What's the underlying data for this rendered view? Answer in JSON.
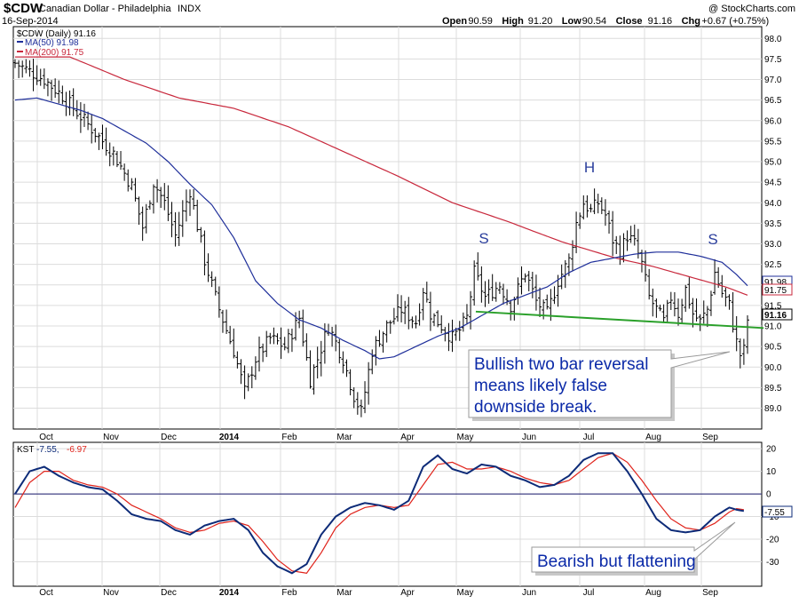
{
  "header": {
    "symbol": "$CDW",
    "name": "Canadian Dollar - Philadelphia",
    "exchange": "INDX",
    "date": "16-Sep-2014",
    "watermark": "@ StockCharts.com",
    "ohlc": [
      {
        "label": "Open",
        "value": "90.59"
      },
      {
        "label": "High",
        "value": "91.20"
      },
      {
        "label": "Low",
        "value": "90.54"
      },
      {
        "label": "Close",
        "value": "91.16"
      },
      {
        "label": "Chg",
        "value": "+0.67 (+0.75%)"
      }
    ]
  },
  "legend": {
    "price": "$CDW (Daily) 91.16",
    "ma50": "MA(50) 91.98",
    "ma200": "MA(200) 91.75",
    "kst_label": "KST",
    "kst_value": "-7.55,",
    "kst_signal": "-6.97"
  },
  "annotations": {
    "break_note": [
      "Bullish two bar reversal",
      "means likely false",
      "downside break."
    ],
    "kst_note": "Bearish but flattening",
    "left_shoulder": "S",
    "head": "H",
    "right_shoulder": "S"
  },
  "value_tags": {
    "ma50": "91.98",
    "ma200": "91.75",
    "close": "91.16",
    "kst": "-7.55"
  },
  "colors": {
    "price_bars": "#000000",
    "ma50": "#1f2f9a",
    "ma200": "#c8283c",
    "neckline": "#2aa02a",
    "kst": "#0d2b78",
    "kst_signal": "#e0231b",
    "annotation_text": "#0b2aa8",
    "shoulder_letters": "#2a3e9c"
  },
  "chart_data": [
    {
      "type": "ohlc-line",
      "ylim": [
        88.6,
        98.2
      ],
      "yticks": [
        "98.0",
        "97.5",
        "97.0",
        "96.5",
        "96.0",
        "95.5",
        "95.0",
        "94.5",
        "94.0",
        "93.5",
        "93.0",
        "92.5",
        "92.0",
        "91.5",
        "91.0",
        "90.5",
        "90.0",
        "89.5",
        "89.0"
      ],
      "x_months": [
        "Oct",
        "Nov",
        "Dec",
        "2014",
        "Feb",
        "Mar",
        "Apr",
        "May",
        "Jun",
        "Jul",
        "Aug",
        "Sep"
      ],
      "close_keypoints": [
        [
          0,
          97.4
        ],
        [
          8,
          97.0
        ],
        [
          13,
          96.6
        ],
        [
          17,
          96.2
        ],
        [
          22,
          95.7
        ],
        [
          27,
          95.2
        ],
        [
          32,
          94.4
        ],
        [
          35,
          93.4
        ],
        [
          38,
          94.5
        ],
        [
          41,
          94.0
        ],
        [
          44,
          93.2
        ],
        [
          48,
          94.3
        ],
        [
          52,
          92.6
        ],
        [
          56,
          91.4
        ],
        [
          60,
          90.4
        ],
        [
          63,
          89.4
        ],
        [
          66,
          90.2
        ],
        [
          70,
          90.7
        ],
        [
          74,
          90.5
        ],
        [
          78,
          91.2
        ],
        [
          81,
          89.7
        ],
        [
          83,
          90.2
        ],
        [
          86,
          91.0
        ],
        [
          90,
          90.2
        ],
        [
          93,
          89.3
        ],
        [
          95,
          88.9
        ],
        [
          98,
          90.4
        ],
        [
          102,
          91.0
        ],
        [
          106,
          91.4
        ],
        [
          110,
          91.1
        ],
        [
          112,
          91.9
        ],
        [
          114,
          91.3
        ],
        [
          117,
          91.0
        ],
        [
          120,
          90.7
        ],
        [
          122,
          90.9
        ],
        [
          124,
          91.2
        ],
        [
          126,
          92.3
        ],
        [
          129,
          91.7
        ],
        [
          133,
          92.0
        ],
        [
          136,
          91.5
        ],
        [
          140,
          92.3
        ],
        [
          143,
          91.6
        ],
        [
          146,
          91.3
        ],
        [
          149,
          92.1
        ],
        [
          152,
          92.6
        ],
        [
          154,
          93.5
        ],
        [
          156,
          94.0
        ],
        [
          158,
          93.8
        ],
        [
          160,
          94.0
        ],
        [
          162,
          93.7
        ],
        [
          164,
          93.1
        ],
        [
          166,
          92.8
        ],
        [
          168,
          93.2
        ],
        [
          170,
          93.0
        ],
        [
          172,
          92.5
        ],
        [
          174,
          91.7
        ],
        [
          176,
          91.4
        ],
        [
          178,
          91.1
        ],
        [
          180,
          91.7
        ],
        [
          182,
          91.3
        ],
        [
          184,
          91.9
        ],
        [
          186,
          91.3
        ],
        [
          188,
          91.1
        ],
        [
          190,
          91.4
        ],
        [
          192,
          92.3
        ],
        [
          194,
          91.8
        ],
        [
          196,
          91.5
        ],
        [
          198,
          90.6
        ],
        [
          199,
          90.3
        ],
        [
          200,
          90.4
        ],
        [
          201,
          91.16
        ]
      ],
      "ma50_keypoints": [
        [
          0,
          96.5
        ],
        [
          6,
          96.55
        ],
        [
          12,
          96.4
        ],
        [
          18,
          96.25
        ],
        [
          24,
          96.05
        ],
        [
          30,
          95.75
        ],
        [
          36,
          95.45
        ],
        [
          42,
          95.0
        ],
        [
          48,
          94.45
        ],
        [
          54,
          93.95
        ],
        [
          60,
          93.15
        ],
        [
          66,
          92.1
        ],
        [
          72,
          91.55
        ],
        [
          78,
          91.15
        ],
        [
          84,
          90.95
        ],
        [
          90,
          90.65
        ],
        [
          96,
          90.4
        ],
        [
          100,
          90.2
        ],
        [
          104,
          90.25
        ],
        [
          110,
          90.5
        ],
        [
          116,
          90.75
        ],
        [
          122,
          90.95
        ],
        [
          128,
          91.25
        ],
        [
          134,
          91.55
        ],
        [
          140,
          91.75
        ],
        [
          146,
          91.95
        ],
        [
          152,
          92.3
        ],
        [
          158,
          92.55
        ],
        [
          164,
          92.65
        ],
        [
          170,
          92.75
        ],
        [
          176,
          92.8
        ],
        [
          182,
          92.8
        ],
        [
          188,
          92.7
        ],
        [
          194,
          92.55
        ],
        [
          198,
          92.25
        ],
        [
          201,
          91.98
        ]
      ],
      "ma200_keypoints": [
        [
          0,
          97.55
        ],
        [
          15,
          97.55
        ],
        [
          30,
          97.0
        ],
        [
          45,
          96.55
        ],
        [
          60,
          96.3
        ],
        [
          75,
          95.85
        ],
        [
          90,
          95.25
        ],
        [
          105,
          94.65
        ],
        [
          120,
          94.0
        ],
        [
          135,
          93.55
        ],
        [
          150,
          93.05
        ],
        [
          165,
          92.65
        ],
        [
          175,
          92.45
        ],
        [
          185,
          92.2
        ],
        [
          195,
          91.95
        ],
        [
          201,
          91.75
        ]
      ],
      "neckline": [
        [
          124,
          91.35
        ],
        [
          202,
          90.95
        ]
      ]
    },
    {
      "type": "line",
      "ylim": [
        -40,
        22
      ],
      "yticks": [
        "20",
        "10",
        "0",
        "-10",
        "-20",
        "-30"
      ],
      "x_months": [
        "Oct",
        "Nov",
        "Dec",
        "2014",
        "Feb",
        "Mar",
        "Apr",
        "May",
        "Jun",
        "Jul",
        "Aug",
        "Sep"
      ],
      "series": [
        {
          "name": "KST",
          "keypoints": [
            [
              0,
              0
            ],
            [
              4,
              10
            ],
            [
              8,
              12
            ],
            [
              12,
              8
            ],
            [
              16,
              5
            ],
            [
              20,
              3
            ],
            [
              24,
              2
            ],
            [
              28,
              -3
            ],
            [
              32,
              -9
            ],
            [
              36,
              -11
            ],
            [
              40,
              -12
            ],
            [
              44,
              -16
            ],
            [
              48,
              -18
            ],
            [
              52,
              -14
            ],
            [
              56,
              -12
            ],
            [
              60,
              -11
            ],
            [
              64,
              -16
            ],
            [
              68,
              -26
            ],
            [
              72,
              -32
            ],
            [
              76,
              -35
            ],
            [
              80,
              -31
            ],
            [
              84,
              -18
            ],
            [
              88,
              -10
            ],
            [
              92,
              -6
            ],
            [
              96,
              -4
            ],
            [
              100,
              -5
            ],
            [
              104,
              -7
            ],
            [
              108,
              -3
            ],
            [
              112,
              12
            ],
            [
              116,
              17
            ],
            [
              120,
              11
            ],
            [
              124,
              9
            ],
            [
              128,
              13
            ],
            [
              132,
              12
            ],
            [
              136,
              8
            ],
            [
              140,
              6
            ],
            [
              144,
              3
            ],
            [
              148,
              4
            ],
            [
              152,
              8
            ],
            [
              156,
              15
            ],
            [
              160,
              18
            ],
            [
              164,
              18
            ],
            [
              168,
              10
            ],
            [
              172,
              0
            ],
            [
              176,
              -11
            ],
            [
              180,
              -16
            ],
            [
              184,
              -17
            ],
            [
              188,
              -16
            ],
            [
              192,
              -10
            ],
            [
              196,
              -6
            ],
            [
              198,
              -7
            ],
            [
              200,
              -7.55
            ]
          ]
        },
        {
          "name": "KST signal",
          "keypoints": [
            [
              0,
              -6
            ],
            [
              4,
              5
            ],
            [
              8,
              10
            ],
            [
              12,
              10
            ],
            [
              16,
              6
            ],
            [
              20,
              4
            ],
            [
              24,
              3
            ],
            [
              28,
              0
            ],
            [
              32,
              -5
            ],
            [
              36,
              -8
            ],
            [
              40,
              -11
            ],
            [
              44,
              -15
            ],
            [
              48,
              -17
            ],
            [
              52,
              -16
            ],
            [
              56,
              -13
            ],
            [
              60,
              -12
            ],
            [
              64,
              -14
            ],
            [
              68,
              -21
            ],
            [
              72,
              -29
            ],
            [
              76,
              -34
            ],
            [
              80,
              -35
            ],
            [
              84,
              -26
            ],
            [
              88,
              -15
            ],
            [
              92,
              -9
            ],
            [
              96,
              -6
            ],
            [
              100,
              -5
            ],
            [
              104,
              -6
            ],
            [
              108,
              -5
            ],
            [
              112,
              4
            ],
            [
              116,
              13
            ],
            [
              120,
              14
            ],
            [
              124,
              11
            ],
            [
              128,
              11
            ],
            [
              132,
              12
            ],
            [
              136,
              10
            ],
            [
              140,
              7
            ],
            [
              144,
              5
            ],
            [
              148,
              4
            ],
            [
              152,
              6
            ],
            [
              156,
              11
            ],
            [
              160,
              16
            ],
            [
              164,
              18
            ],
            [
              168,
              14
            ],
            [
              172,
              6
            ],
            [
              176,
              -3
            ],
            [
              180,
              -11
            ],
            [
              184,
              -15
            ],
            [
              188,
              -16
            ],
            [
              192,
              -13
            ],
            [
              196,
              -8
            ],
            [
              198,
              -6.5
            ],
            [
              200,
              -6.97
            ]
          ]
        }
      ]
    }
  ]
}
